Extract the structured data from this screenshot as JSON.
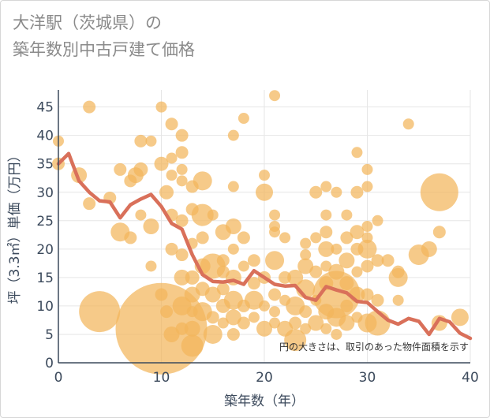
{
  "title_line1": "大洋駅（茨城県）の",
  "title_line2": "築年数別中古戸建て価格",
  "chart_data": {
    "type": "scatter",
    "title": "大洋駅（茨城県）の 築年数別中古戸建て価格",
    "xlabel": "築年数（年）",
    "ylabel": "坪（3.3㎡）単価（万円）",
    "xlim": [
      0,
      40
    ],
    "ylim": [
      0,
      48
    ],
    "xticks": [
      0,
      10,
      20,
      30,
      40
    ],
    "yticks": [
      0,
      5,
      10,
      15,
      20,
      25,
      30,
      35,
      40,
      45
    ],
    "grid": true,
    "legend": "none",
    "annotation": "円の大きさは、取引のあった物件面積を示す",
    "colors": {
      "bubble": "#f2b65c",
      "line": "#d9705a",
      "axis": "#3c4a5c"
    },
    "series": [
      {
        "type": "bubble",
        "points": [
          [
            0,
            39,
            7
          ],
          [
            0,
            35,
            8
          ],
          [
            2,
            33,
            10
          ],
          [
            3,
            45,
            8
          ],
          [
            3,
            28,
            8
          ],
          [
            5,
            29,
            8
          ],
          [
            6,
            34,
            8
          ],
          [
            6,
            23,
            12
          ],
          [
            4,
            9,
            26
          ],
          [
            7,
            32,
            8
          ],
          [
            7,
            22,
            8
          ],
          [
            8,
            39,
            8
          ],
          [
            8,
            34,
            9
          ],
          [
            7.5,
            33,
            10
          ],
          [
            8,
            26,
            7
          ],
          [
            9,
            39,
            7
          ],
          [
            9,
            24,
            10
          ],
          [
            9,
            17,
            7
          ],
          [
            10,
            45,
            7
          ],
          [
            10,
            35,
            9
          ],
          [
            10.5,
            30,
            9
          ],
          [
            10,
            12,
            8
          ],
          [
            10,
            6,
            58
          ],
          [
            10.5,
            9,
            8
          ],
          [
            11,
            42,
            8
          ],
          [
            11,
            36,
            7
          ],
          [
            11,
            33,
            7
          ],
          [
            11,
            26,
            8
          ],
          [
            11,
            5,
            10
          ],
          [
            11,
            20,
            8
          ],
          [
            12,
            40,
            8
          ],
          [
            12,
            37,
            8
          ],
          [
            12,
            34,
            7
          ],
          [
            12,
            32,
            7
          ],
          [
            12,
            25,
            8
          ],
          [
            12,
            19,
            8
          ],
          [
            12,
            15,
            10
          ],
          [
            12,
            10,
            12
          ],
          [
            12,
            6,
            8
          ],
          [
            13,
            31,
            8
          ],
          [
            13,
            27,
            8
          ],
          [
            13,
            21,
            7
          ],
          [
            13,
            15,
            9
          ],
          [
            13,
            12,
            10
          ],
          [
            13,
            9,
            7
          ],
          [
            13,
            6,
            10
          ],
          [
            13,
            3,
            14
          ],
          [
            14,
            32,
            12
          ],
          [
            14,
            26,
            14
          ],
          [
            14,
            22,
            8
          ],
          [
            14,
            17,
            10
          ],
          [
            14,
            13,
            9
          ],
          [
            14,
            9,
            12
          ],
          [
            15,
            26,
            7
          ],
          [
            15,
            17,
            16
          ],
          [
            15,
            12,
            10
          ],
          [
            15,
            8,
            8
          ],
          [
            15,
            5,
            12
          ],
          [
            16,
            23,
            10
          ],
          [
            16,
            18,
            8
          ],
          [
            16,
            16,
            8
          ],
          [
            16,
            13,
            8
          ],
          [
            16,
            10,
            9
          ],
          [
            16,
            7,
            7
          ],
          [
            17,
            40,
            7
          ],
          [
            17,
            31,
            7
          ],
          [
            17,
            24,
            10
          ],
          [
            17,
            20,
            7
          ],
          [
            17,
            15,
            10
          ],
          [
            17,
            11,
            12
          ],
          [
            17,
            8,
            10
          ],
          [
            17,
            5,
            8
          ],
          [
            18,
            43,
            7
          ],
          [
            18,
            22,
            8
          ],
          [
            18,
            17,
            7
          ],
          [
            18,
            10,
            8
          ],
          [
            18,
            7,
            8
          ],
          [
            19,
            18,
            8
          ],
          [
            19,
            14,
            8
          ],
          [
            19,
            11,
            12
          ],
          [
            19,
            8,
            7
          ],
          [
            20,
            33,
            7
          ],
          [
            20,
            30,
            11
          ],
          [
            20,
            15,
            8
          ],
          [
            20,
            10,
            7
          ],
          [
            20,
            6,
            10
          ],
          [
            21,
            47,
            7
          ],
          [
            21,
            26,
            7
          ],
          [
            21,
            24,
            7
          ],
          [
            21,
            23,
            7
          ],
          [
            21,
            18,
            12
          ],
          [
            21,
            12,
            8
          ],
          [
            21,
            9,
            7
          ],
          [
            21,
            7,
            7
          ],
          [
            22,
            22,
            7
          ],
          [
            22,
            15,
            8
          ],
          [
            22,
            11,
            7
          ],
          [
            22,
            6,
            10
          ],
          [
            23,
            15,
            10
          ],
          [
            23,
            10,
            12
          ],
          [
            23,
            7,
            8
          ],
          [
            23,
            4,
            14
          ],
          [
            24,
            21,
            7
          ],
          [
            24,
            19,
            7
          ],
          [
            24,
            17,
            10
          ],
          [
            24,
            13,
            12
          ],
          [
            24,
            9,
            8
          ],
          [
            24,
            6,
            7
          ],
          [
            25,
            30,
            8
          ],
          [
            25,
            22,
            7
          ],
          [
            25,
            16,
            8
          ],
          [
            25,
            11,
            7
          ],
          [
            25,
            7,
            10
          ],
          [
            26,
            31,
            7
          ],
          [
            26,
            26,
            7
          ],
          [
            26,
            23,
            8
          ],
          [
            26,
            20,
            10
          ],
          [
            26,
            17,
            7
          ],
          [
            26,
            14,
            9
          ],
          [
            26,
            9,
            10
          ],
          [
            26,
            6,
            7
          ],
          [
            27,
            30,
            7
          ],
          [
            27,
            20,
            7
          ],
          [
            27,
            16,
            10
          ],
          [
            27,
            12,
            30
          ],
          [
            27,
            8,
            12
          ],
          [
            27,
            5,
            7
          ],
          [
            28,
            26,
            7
          ],
          [
            28,
            22,
            8
          ],
          [
            28,
            18,
            10
          ],
          [
            28,
            14,
            9
          ],
          [
            28,
            10,
            8
          ],
          [
            28,
            7,
            10
          ],
          [
            29,
            37,
            7
          ],
          [
            29,
            30,
            8
          ],
          [
            29,
            23,
            9
          ],
          [
            29,
            20,
            8
          ],
          [
            29,
            16,
            7
          ],
          [
            29,
            12,
            10
          ],
          [
            29,
            8,
            7
          ],
          [
            30,
            34,
            7
          ],
          [
            30,
            31,
            7
          ],
          [
            30,
            24,
            7
          ],
          [
            30,
            22,
            7
          ],
          [
            30,
            20,
            12
          ],
          [
            30,
            17,
            8
          ],
          [
            30,
            12,
            8
          ],
          [
            30,
            7,
            12
          ],
          [
            31,
            25,
            7
          ],
          [
            31,
            18,
            8
          ],
          [
            31,
            11,
            8
          ],
          [
            31,
            7,
            16
          ],
          [
            32,
            18,
            8
          ],
          [
            33,
            16,
            8
          ],
          [
            33,
            15,
            12
          ],
          [
            33,
            11,
            7
          ],
          [
            34,
            42,
            7
          ],
          [
            35,
            19,
            13
          ],
          [
            36,
            20,
            10
          ],
          [
            37,
            30,
            24
          ],
          [
            37,
            23,
            8
          ],
          [
            37,
            7,
            10
          ],
          [
            39,
            8,
            11
          ]
        ]
      },
      {
        "type": "line",
        "x": [
          0,
          1,
          2,
          3,
          4,
          5,
          6,
          7,
          8,
          9,
          10,
          11,
          12,
          13,
          14,
          15,
          16,
          17,
          18,
          19,
          20,
          21,
          22,
          23,
          24,
          25,
          26,
          27,
          28,
          29,
          30,
          31,
          32,
          33,
          34,
          35,
          36,
          37,
          38,
          39,
          40
        ],
        "y": [
          35,
          36.8,
          32,
          30,
          28.5,
          28.3,
          25.5,
          27.8,
          28.8,
          29.6,
          27.5,
          24.5,
          23.5,
          19,
          15.5,
          14.3,
          14.2,
          14.5,
          13.8,
          16.2,
          15,
          13.8,
          13.5,
          13.6,
          11.5,
          11,
          13.4,
          12.8,
          12.3,
          10.8,
          10.6,
          9,
          7.5,
          6.8,
          7.8,
          7.3,
          5,
          7.8,
          7.2,
          5.2,
          4.3
        ]
      }
    ]
  }
}
